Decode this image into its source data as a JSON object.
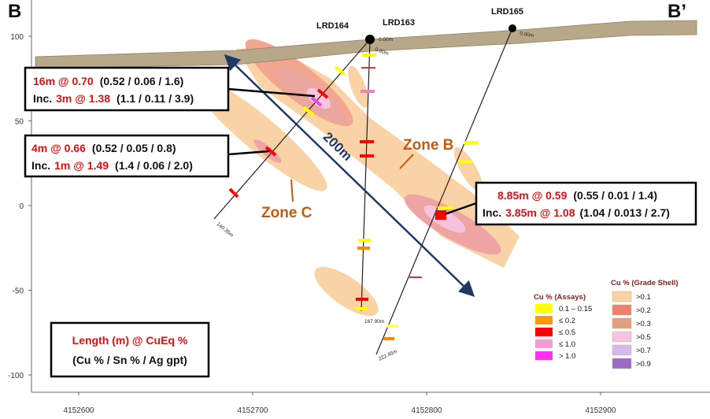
{
  "section": {
    "left_label": "B",
    "right_label": "B’"
  },
  "axes": {
    "yticks": [
      100,
      50,
      0,
      -50,
      -100
    ],
    "xticks": [
      4152600,
      4152700,
      4152800,
      4152900
    ]
  },
  "drill_holes": [
    {
      "name": "LRD164",
      "collar_depth": "0.00m",
      "end_depth": "140.35m"
    },
    {
      "name": "LRD163",
      "collar_depth": "0.00m",
      "end_depth": "167.90m"
    },
    {
      "name": "LRD165",
      "collar_depth": "0.00m",
      "end_depth": "222.45m"
    }
  ],
  "scale_bar": "200m",
  "zones": [
    "Zone B",
    "Zone C"
  ],
  "callouts": [
    {
      "interval": "16m @ 0.70",
      "detail": "(0.52 / 0.06 / 1.6)",
      "inc_prefix": "Inc.",
      "inc_interval": "3m @ 1.38",
      "inc_detail": "(1.1 / 0.11 / 3.9)"
    },
    {
      "interval": "4m @ 0.66",
      "detail": "(0.52 / 0.05 / 0.8)",
      "inc_prefix": "Inc.",
      "inc_interval": "1m @ 1.49",
      "inc_detail": "(1.4 / 0.06 / 2.0)"
    },
    {
      "interval": "8.85m @ 0.59",
      "detail": "(0.55 / 0.01 / 1.4)",
      "inc_prefix": "Inc.",
      "inc_interval": "3.85m @ 1.08",
      "inc_detail": "(1.04 / 0.013 / 2.7)"
    }
  ],
  "key": {
    "line1": "Length (m) @ CuEq %",
    "line2": "(Cu % / Sn % / Ag gpt)"
  },
  "legend_assays": {
    "title": "Cu % (Assays)",
    "items": [
      "0.1 – 0.15",
      "≤ 0.2",
      "≤ 0.5",
      "≤ 1.0",
      "> 1.0"
    ]
  },
  "legend_shell": {
    "title": "Cu % (Grade Shell)",
    "items": [
      ">0.1",
      ">0.2",
      ">0.3",
      ">0.5",
      ">0.7",
      ">0.9"
    ]
  }
}
